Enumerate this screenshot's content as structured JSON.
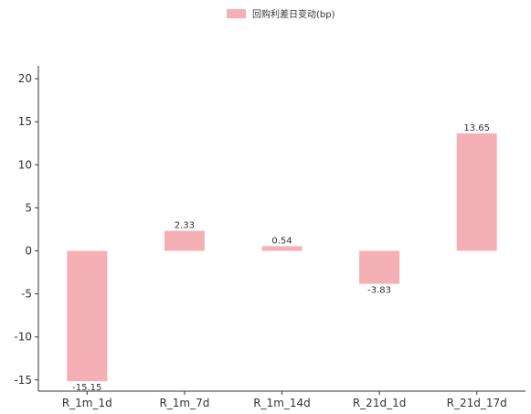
{
  "chart_data": {
    "type": "bar",
    "categories": [
      "R_1m_1d",
      "R_1m_7d",
      "R_1m_14d",
      "R_21d_1d",
      "R_21d_17d"
    ],
    "series": [
      {
        "name": "回购利差日变动(bp)",
        "values": [
          -15.15,
          2.33,
          0.54,
          -3.83,
          13.65
        ],
        "value_labels": [
          "-15.15",
          "2.33",
          "0.54",
          "-3.83",
          "13.65"
        ],
        "color": "#f4b0b4"
      }
    ],
    "y_ticks": [
      20,
      15,
      10,
      5,
      0,
      -5,
      -10,
      -15
    ],
    "y_tick_labels": [
      "20",
      "15",
      "10",
      "5",
      "0",
      "-5",
      "-10",
      "-15"
    ],
    "ylim": [
      -16.3,
      21.5
    ],
    "title": "",
    "xlabel": "",
    "ylabel": "",
    "legend_position": "top-center",
    "grid": false
  }
}
